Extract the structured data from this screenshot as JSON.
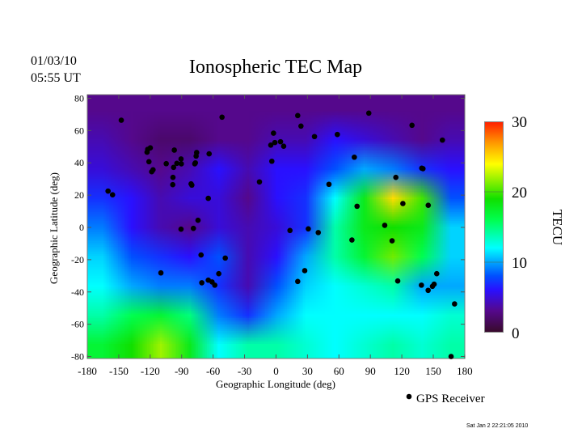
{
  "header": {
    "date": "01/03/10",
    "time": "05:55 UT",
    "title": "Ionospheric TEC Map"
  },
  "footer_timestamp": "Sat Jan  2 22:21:05 2010",
  "legend": {
    "marker": "black-dot",
    "label": "GPS Receiver"
  },
  "colorbar": {
    "label": "TECU",
    "range": [
      0,
      30
    ],
    "ticks": [
      "0",
      "10",
      "20",
      "30"
    ],
    "colormap_stops": [
      {
        "v": 0,
        "c": "#380a2c"
      },
      {
        "v": 3,
        "c": "#55088c"
      },
      {
        "v": 6,
        "c": "#2a10ff"
      },
      {
        "v": 8,
        "c": "#0050ff"
      },
      {
        "v": 12,
        "c": "#00ffff"
      },
      {
        "v": 16,
        "c": "#00ff50"
      },
      {
        "v": 19,
        "c": "#10e000"
      },
      {
        "v": 24,
        "c": "#ffff00"
      },
      {
        "v": 27,
        "c": "#ff9a00"
      },
      {
        "v": 30,
        "c": "#ff2000"
      }
    ]
  },
  "chart_data": {
    "type": "heatmap",
    "title": "Ionospheric TEC Map",
    "xlabel": "Geographic Longitude (deg)",
    "ylabel": "Geographic Latitude (deg)",
    "xlim": [
      -180,
      180
    ],
    "ylim": [
      -80,
      80
    ],
    "xticks": [
      "-180",
      "-150",
      "-120",
      "-90",
      "-60",
      "-30",
      "0",
      "30",
      "60",
      "90",
      "120",
      "150",
      "180"
    ],
    "yticks": [
      "80",
      "60",
      "40",
      "20",
      "0",
      "-20",
      "-40",
      "-60",
      "-80"
    ],
    "units": "TECU",
    "grid_lon": [
      -180,
      -150,
      -120,
      -90,
      -60,
      -30,
      0,
      30,
      60,
      90,
      120,
      150,
      180
    ],
    "grid_lat": [
      80,
      60,
      40,
      20,
      0,
      -20,
      -40,
      -60,
      -80
    ],
    "tec_values": [
      [
        3,
        3,
        3,
        3,
        3,
        3,
        3,
        3,
        3,
        3,
        3,
        3,
        3
      ],
      [
        4,
        3,
        2,
        2,
        3,
        3,
        4,
        4,
        6,
        5,
        4,
        3,
        4
      ],
      [
        5,
        4,
        3,
        4,
        6,
        4,
        6,
        6,
        8,
        10,
        9,
        7,
        6
      ],
      [
        7,
        6,
        4,
        5,
        5,
        3,
        6,
        7,
        12,
        18,
        25,
        20,
        8
      ],
      [
        9,
        6,
        4,
        3,
        5,
        4,
        5,
        7,
        14,
        18,
        19,
        18,
        11
      ],
      [
        11,
        8,
        7,
        6,
        8,
        4,
        6,
        10,
        14,
        17,
        21,
        16,
        11
      ],
      [
        12,
        10,
        9,
        9,
        7,
        4,
        8,
        11,
        12,
        13,
        14,
        10,
        10
      ],
      [
        14,
        16,
        17,
        15,
        9,
        7,
        10,
        12,
        12,
        12,
        12,
        12,
        13
      ],
      [
        17,
        19,
        22,
        18,
        12,
        14,
        14,
        13,
        12,
        13,
        14,
        13,
        14
      ]
    ],
    "gps_receivers": [
      [
        -147.6,
        66.4
      ],
      [
        -51.5,
        68.3
      ],
      [
        20.7,
        69.3
      ],
      [
        23.8,
        62.8
      ],
      [
        88.5,
        70.8
      ],
      [
        129.7,
        63.3
      ],
      [
        158.7,
        54.1
      ],
      [
        -2.4,
        58.4
      ],
      [
        -5,
        51
      ],
      [
        -1.1,
        52.6
      ],
      [
        4.3,
        53.1
      ],
      [
        7.3,
        50.3
      ],
      [
        36.7,
        56.3
      ],
      [
        58.5,
        57.6
      ],
      [
        74.7,
        43.5
      ],
      [
        -4,
        41
      ],
      [
        -15.8,
        28.2
      ],
      [
        50.5,
        26.7
      ],
      [
        114.3,
        31
      ],
      [
        139,
        36.7
      ],
      [
        140.2,
        36.4
      ],
      [
        77.3,
        13.1
      ],
      [
        121,
        14.8
      ],
      [
        145.2,
        13.7
      ],
      [
        103.7,
        1.3
      ],
      [
        110.7,
        -8.3
      ],
      [
        72.4,
        -7.8
      ],
      [
        13.3,
        -1.9
      ],
      [
        30.8,
        -0.9
      ],
      [
        40.3,
        -3.2
      ],
      [
        27.4,
        -26.8
      ],
      [
        20.7,
        -33.5
      ],
      [
        116.1,
        -33.2
      ],
      [
        138.7,
        -35.8
      ],
      [
        145.1,
        -39
      ],
      [
        149.2,
        -36.5
      ],
      [
        150.8,
        -35.2
      ],
      [
        153.3,
        -28.7
      ],
      [
        170.3,
        -47.4
      ],
      [
        167,
        -80
      ],
      [
        -123,
        46.6
      ],
      [
        -119.9,
        49.3
      ],
      [
        -122.4,
        48.4
      ],
      [
        -121.2,
        40.7
      ],
      [
        -118.6,
        34.5
      ],
      [
        -117.3,
        35.7
      ],
      [
        -104.7,
        39.5
      ],
      [
        -97,
        47.9
      ],
      [
        -94.6,
        39.7
      ],
      [
        -90.6,
        42.4
      ],
      [
        -90.3,
        39.4
      ],
      [
        -97.7,
        37.2
      ],
      [
        -98.3,
        31
      ],
      [
        -98.5,
        26.5
      ],
      [
        -81,
        27
      ],
      [
        -80.3,
        26.2
      ],
      [
        -76.9,
        40
      ],
      [
        -77.5,
        39.4
      ],
      [
        -76.2,
        44.2
      ],
      [
        -75.7,
        46.4
      ],
      [
        -63.8,
        45.6
      ],
      [
        -160.2,
        22.5
      ],
      [
        -155.9,
        20.2
      ],
      [
        -64.6,
        18
      ],
      [
        -74.4,
        4.4
      ],
      [
        -78.8,
        -0.6
      ],
      [
        -90.6,
        -1.1
      ],
      [
        -71.5,
        -17.1
      ],
      [
        -48.4,
        -19
      ],
      [
        -109.8,
        -28.2
      ],
      [
        -54.6,
        -28.7
      ],
      [
        -70.8,
        -34.3
      ],
      [
        -64.6,
        -32.7
      ],
      [
        -61,
        -33.8
      ],
      [
        -58.4,
        -35.8
      ]
    ]
  }
}
